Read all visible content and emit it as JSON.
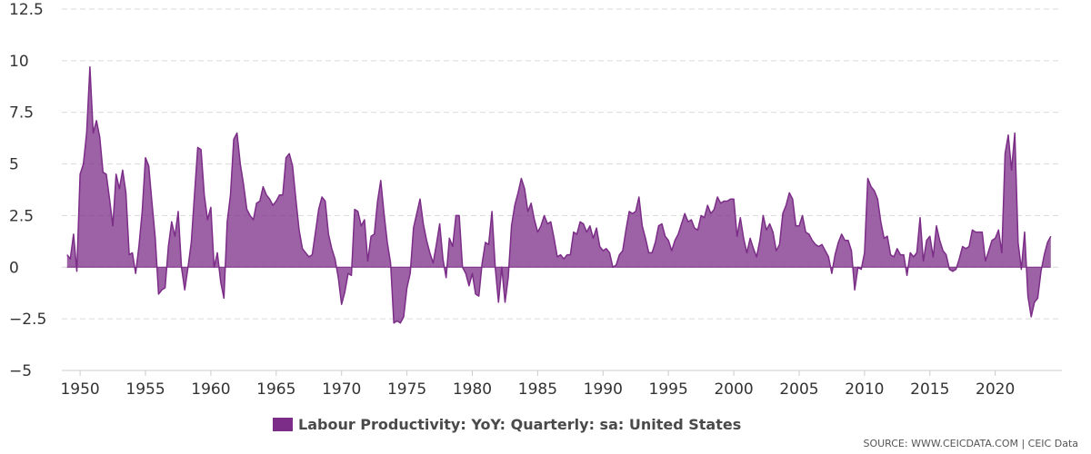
{
  "chart_data": {
    "type": "area",
    "title": "",
    "xlabel": "",
    "ylabel": "",
    "xlim": [
      1948.6,
      2025.1
    ],
    "ylim": [
      -5,
      12.5
    ],
    "y_ticks": [
      -5,
      -2.5,
      0,
      2.5,
      5,
      7.5,
      10,
      12.5
    ],
    "y_tick_labels": [
      "−5",
      "−2.5",
      "0",
      "2.5",
      "5",
      "7.5",
      "10",
      "12.5"
    ],
    "x_ticks": [
      1950,
      1955,
      1960,
      1965,
      1970,
      1975,
      1980,
      1985,
      1990,
      1995,
      2000,
      2005,
      2010,
      2015,
      2020
    ],
    "x_tick_labels": [
      "1950",
      "1955",
      "1960",
      "1965",
      "1970",
      "1975",
      "1980",
      "1985",
      "1990",
      "1995",
      "2000",
      "2005",
      "2010",
      "2015",
      "2020"
    ],
    "grid": true,
    "legend_position": "bottom",
    "series": [
      {
        "name": "Labour Productivity: YoY: Quarterly: sa: United States",
        "color": "#7b2d87",
        "points": [
          [
            1949.0,
            0.6
          ],
          [
            1949.25,
            0.4
          ],
          [
            1949.5,
            1.6
          ],
          [
            1949.75,
            -0.2
          ],
          [
            1950.0,
            4.5
          ],
          [
            1950.25,
            5.0
          ],
          [
            1950.5,
            6.5
          ],
          [
            1950.75,
            9.7
          ],
          [
            1951.0,
            6.5
          ],
          [
            1951.25,
            7.1
          ],
          [
            1951.5,
            6.3
          ],
          [
            1951.75,
            4.6
          ],
          [
            1952.0,
            4.5
          ],
          [
            1952.25,
            3.3
          ],
          [
            1952.5,
            2.0
          ],
          [
            1952.75,
            4.5
          ],
          [
            1953.0,
            3.8
          ],
          [
            1953.25,
            4.7
          ],
          [
            1953.5,
            3.6
          ],
          [
            1953.75,
            0.6
          ],
          [
            1954.0,
            0.7
          ],
          [
            1954.25,
            -0.3
          ],
          [
            1954.5,
            1.0
          ],
          [
            1954.75,
            2.7
          ],
          [
            1955.0,
            5.3
          ],
          [
            1955.25,
            4.9
          ],
          [
            1955.5,
            3.1
          ],
          [
            1955.75,
            1.4
          ],
          [
            1956.0,
            -1.3
          ],
          [
            1956.25,
            -1.1
          ],
          [
            1956.5,
            -1.0
          ],
          [
            1956.75,
            1.0
          ],
          [
            1957.0,
            2.2
          ],
          [
            1957.25,
            1.5
          ],
          [
            1957.5,
            2.7
          ],
          [
            1957.75,
            0.0
          ],
          [
            1958.0,
            -1.1
          ],
          [
            1958.25,
            0.0
          ],
          [
            1958.5,
            1.2
          ],
          [
            1958.75,
            3.5
          ],
          [
            1959.0,
            5.8
          ],
          [
            1959.25,
            5.7
          ],
          [
            1959.5,
            3.5
          ],
          [
            1959.75,
            2.3
          ],
          [
            1960.0,
            2.9
          ],
          [
            1960.25,
            0.0
          ],
          [
            1960.5,
            0.7
          ],
          [
            1960.75,
            -0.7
          ],
          [
            1961.0,
            -1.5
          ],
          [
            1961.25,
            2.2
          ],
          [
            1961.5,
            3.5
          ],
          [
            1961.75,
            6.2
          ],
          [
            1962.0,
            6.5
          ],
          [
            1962.25,
            5.0
          ],
          [
            1962.5,
            4.0
          ],
          [
            1962.75,
            2.8
          ],
          [
            1963.0,
            2.5
          ],
          [
            1963.25,
            2.3
          ],
          [
            1963.5,
            3.1
          ],
          [
            1963.75,
            3.2
          ],
          [
            1964.0,
            3.9
          ],
          [
            1964.25,
            3.5
          ],
          [
            1964.5,
            3.3
          ],
          [
            1964.75,
            3.0
          ],
          [
            1965.0,
            3.2
          ],
          [
            1965.25,
            3.5
          ],
          [
            1965.5,
            3.5
          ],
          [
            1965.75,
            5.3
          ],
          [
            1966.0,
            5.5
          ],
          [
            1966.25,
            4.9
          ],
          [
            1966.5,
            3.3
          ],
          [
            1966.75,
            1.8
          ],
          [
            1967.0,
            0.9
          ],
          [
            1967.25,
            0.7
          ],
          [
            1967.5,
            0.5
          ],
          [
            1967.75,
            0.6
          ],
          [
            1968.0,
            1.7
          ],
          [
            1968.25,
            2.8
          ],
          [
            1968.5,
            3.4
          ],
          [
            1968.75,
            3.2
          ],
          [
            1969.0,
            1.6
          ],
          [
            1969.25,
            0.9
          ],
          [
            1969.5,
            0.4
          ],
          [
            1969.75,
            -0.5
          ],
          [
            1970.0,
            -1.8
          ],
          [
            1970.25,
            -1.2
          ],
          [
            1970.5,
            -0.3
          ],
          [
            1970.75,
            -0.4
          ],
          [
            1971.0,
            2.8
          ],
          [
            1971.25,
            2.7
          ],
          [
            1971.5,
            2.0
          ],
          [
            1971.75,
            2.3
          ],
          [
            1972.0,
            0.3
          ],
          [
            1972.25,
            1.5
          ],
          [
            1972.5,
            1.6
          ],
          [
            1972.75,
            3.2
          ],
          [
            1973.0,
            4.2
          ],
          [
            1973.25,
            2.6
          ],
          [
            1973.5,
            1.2
          ],
          [
            1973.75,
            0.2
          ],
          [
            1974.0,
            -2.7
          ],
          [
            1974.25,
            -2.6
          ],
          [
            1974.5,
            -2.7
          ],
          [
            1974.75,
            -2.4
          ],
          [
            1975.0,
            -1.0
          ],
          [
            1975.25,
            -0.3
          ],
          [
            1975.5,
            1.9
          ],
          [
            1975.75,
            2.6
          ],
          [
            1976.0,
            3.3
          ],
          [
            1976.25,
            2.1
          ],
          [
            1976.5,
            1.3
          ],
          [
            1976.75,
            0.7
          ],
          [
            1977.0,
            0.2
          ],
          [
            1977.25,
            1.1
          ],
          [
            1977.5,
            2.1
          ],
          [
            1977.75,
            0.4
          ],
          [
            1978.0,
            -0.5
          ],
          [
            1978.25,
            1.4
          ],
          [
            1978.5,
            1.0
          ],
          [
            1978.75,
            2.5
          ],
          [
            1979.0,
            2.5
          ],
          [
            1979.25,
            0.0
          ],
          [
            1979.5,
            -0.3
          ],
          [
            1979.75,
            -0.9
          ],
          [
            1980.0,
            -0.3
          ],
          [
            1980.25,
            -1.3
          ],
          [
            1980.5,
            -1.4
          ],
          [
            1980.75,
            0.2
          ],
          [
            1981.0,
            1.2
          ],
          [
            1981.25,
            1.1
          ],
          [
            1981.5,
            2.7
          ],
          [
            1981.75,
            0.0
          ],
          [
            1982.0,
            -1.7
          ],
          [
            1982.25,
            0.0
          ],
          [
            1982.5,
            -1.7
          ],
          [
            1982.75,
            -0.5
          ],
          [
            1983.0,
            2.0
          ],
          [
            1983.25,
            3.0
          ],
          [
            1983.5,
            3.6
          ],
          [
            1983.75,
            4.3
          ],
          [
            1984.0,
            3.8
          ],
          [
            1984.25,
            2.7
          ],
          [
            1984.5,
            3.1
          ],
          [
            1984.75,
            2.3
          ],
          [
            1985.0,
            1.7
          ],
          [
            1985.25,
            2.0
          ],
          [
            1985.5,
            2.5
          ],
          [
            1985.75,
            2.1
          ],
          [
            1986.0,
            2.2
          ],
          [
            1986.25,
            1.4
          ],
          [
            1986.5,
            0.5
          ],
          [
            1986.75,
            0.6
          ],
          [
            1987.0,
            0.4
          ],
          [
            1987.25,
            0.6
          ],
          [
            1987.5,
            0.6
          ],
          [
            1987.75,
            1.7
          ],
          [
            1988.0,
            1.6
          ],
          [
            1988.25,
            2.2
          ],
          [
            1988.5,
            2.1
          ],
          [
            1988.75,
            1.7
          ],
          [
            1989.0,
            2.0
          ],
          [
            1989.25,
            1.4
          ],
          [
            1989.5,
            1.9
          ],
          [
            1989.75,
            1.0
          ],
          [
            1990.0,
            0.8
          ],
          [
            1990.25,
            0.9
          ],
          [
            1990.5,
            0.7
          ],
          [
            1990.75,
            0.0
          ],
          [
            1991.0,
            0.1
          ],
          [
            1991.25,
            0.6
          ],
          [
            1991.5,
            0.8
          ],
          [
            1991.75,
            1.8
          ],
          [
            1992.0,
            2.7
          ],
          [
            1992.25,
            2.6
          ],
          [
            1992.5,
            2.7
          ],
          [
            1992.75,
            3.4
          ],
          [
            1993.0,
            2.0
          ],
          [
            1993.25,
            1.4
          ],
          [
            1993.5,
            0.7
          ],
          [
            1993.75,
            0.7
          ],
          [
            1994.0,
            1.2
          ],
          [
            1994.25,
            2.0
          ],
          [
            1994.5,
            2.1
          ],
          [
            1994.75,
            1.5
          ],
          [
            1995.0,
            1.3
          ],
          [
            1995.25,
            0.8
          ],
          [
            1995.5,
            1.3
          ],
          [
            1995.75,
            1.6
          ],
          [
            1996.0,
            2.1
          ],
          [
            1996.25,
            2.6
          ],
          [
            1996.5,
            2.2
          ],
          [
            1996.75,
            2.3
          ],
          [
            1997.0,
            1.9
          ],
          [
            1997.25,
            1.8
          ],
          [
            1997.5,
            2.5
          ],
          [
            1997.75,
            2.4
          ],
          [
            1998.0,
            3.0
          ],
          [
            1998.25,
            2.6
          ],
          [
            1998.5,
            2.8
          ],
          [
            1998.75,
            3.4
          ],
          [
            1999.0,
            3.1
          ],
          [
            1999.25,
            3.2
          ],
          [
            1999.5,
            3.2
          ],
          [
            1999.75,
            3.3
          ],
          [
            2000.0,
            3.3
          ],
          [
            2000.25,
            1.5
          ],
          [
            2000.5,
            2.4
          ],
          [
            2000.75,
            1.4
          ],
          [
            2001.0,
            0.7
          ],
          [
            2001.25,
            1.4
          ],
          [
            2001.5,
            0.9
          ],
          [
            2001.75,
            0.5
          ],
          [
            2002.0,
            1.3
          ],
          [
            2002.25,
            2.5
          ],
          [
            2002.5,
            1.8
          ],
          [
            2002.75,
            2.1
          ],
          [
            2003.0,
            1.7
          ],
          [
            2003.25,
            0.8
          ],
          [
            2003.5,
            1.1
          ],
          [
            2003.75,
            2.6
          ],
          [
            2004.0,
            3.0
          ],
          [
            2004.25,
            3.6
          ],
          [
            2004.5,
            3.3
          ],
          [
            2004.75,
            2.0
          ],
          [
            2005.0,
            2.0
          ],
          [
            2005.25,
            2.5
          ],
          [
            2005.5,
            1.7
          ],
          [
            2005.75,
            1.6
          ],
          [
            2006.0,
            1.3
          ],
          [
            2006.25,
            1.1
          ],
          [
            2006.5,
            1.0
          ],
          [
            2006.75,
            1.1
          ],
          [
            2007.0,
            0.8
          ],
          [
            2007.25,
            0.5
          ],
          [
            2007.5,
            -0.3
          ],
          [
            2007.75,
            0.6
          ],
          [
            2008.0,
            1.2
          ],
          [
            2008.25,
            1.6
          ],
          [
            2008.5,
            1.3
          ],
          [
            2008.75,
            1.3
          ],
          [
            2009.0,
            0.8
          ],
          [
            2009.25,
            -1.1
          ],
          [
            2009.5,
            0.0
          ],
          [
            2009.75,
            -0.1
          ],
          [
            2010.0,
            0.7
          ],
          [
            2010.25,
            4.3
          ],
          [
            2010.5,
            3.9
          ],
          [
            2010.75,
            3.7
          ],
          [
            2011.0,
            3.3
          ],
          [
            2011.25,
            2.2
          ],
          [
            2011.5,
            1.4
          ],
          [
            2011.75,
            1.5
          ],
          [
            2012.0,
            0.6
          ],
          [
            2012.25,
            0.5
          ],
          [
            2012.5,
            0.9
          ],
          [
            2012.75,
            0.6
          ],
          [
            2013.0,
            0.6
          ],
          [
            2013.25,
            -0.4
          ],
          [
            2013.5,
            0.7
          ],
          [
            2013.75,
            0.5
          ],
          [
            2014.0,
            0.7
          ],
          [
            2014.25,
            2.4
          ],
          [
            2014.5,
            0.3
          ],
          [
            2014.75,
            1.3
          ],
          [
            2015.0,
            1.5
          ],
          [
            2015.25,
            0.5
          ],
          [
            2015.5,
            2.0
          ],
          [
            2015.75,
            1.3
          ],
          [
            2016.0,
            0.8
          ],
          [
            2016.25,
            0.6
          ],
          [
            2016.5,
            -0.1
          ],
          [
            2016.75,
            -0.2
          ],
          [
            2017.0,
            -0.1
          ],
          [
            2017.25,
            0.4
          ],
          [
            2017.5,
            1.0
          ],
          [
            2017.75,
            0.9
          ],
          [
            2018.0,
            1.0
          ],
          [
            2018.25,
            1.8
          ],
          [
            2018.5,
            1.7
          ],
          [
            2018.75,
            1.7
          ],
          [
            2019.0,
            1.7
          ],
          [
            2019.25,
            0.3
          ],
          [
            2019.5,
            0.8
          ],
          [
            2019.75,
            1.3
          ],
          [
            2020.0,
            1.4
          ],
          [
            2020.25,
            1.8
          ],
          [
            2020.5,
            0.7
          ],
          [
            2020.75,
            5.5
          ],
          [
            2021.0,
            6.4
          ],
          [
            2021.25,
            4.7
          ],
          [
            2021.5,
            6.5
          ],
          [
            2021.75,
            1.2
          ],
          [
            2022.0,
            -0.1
          ],
          [
            2022.25,
            1.7
          ],
          [
            2022.5,
            -1.4
          ],
          [
            2022.75,
            -2.4
          ],
          [
            2023.0,
            -1.7
          ],
          [
            2023.25,
            -1.5
          ],
          [
            2023.5,
            -0.2
          ],
          [
            2023.75,
            0.6
          ],
          [
            2024.0,
            1.2
          ],
          [
            2024.25,
            1.5
          ]
        ]
      }
    ]
  },
  "legend": {
    "label": "Labour Productivity: YoY: Quarterly: sa: United States",
    "color": "#7b2d87"
  },
  "source": "SOURCE: WWW.CEICDATA.COM | CEIC Data"
}
